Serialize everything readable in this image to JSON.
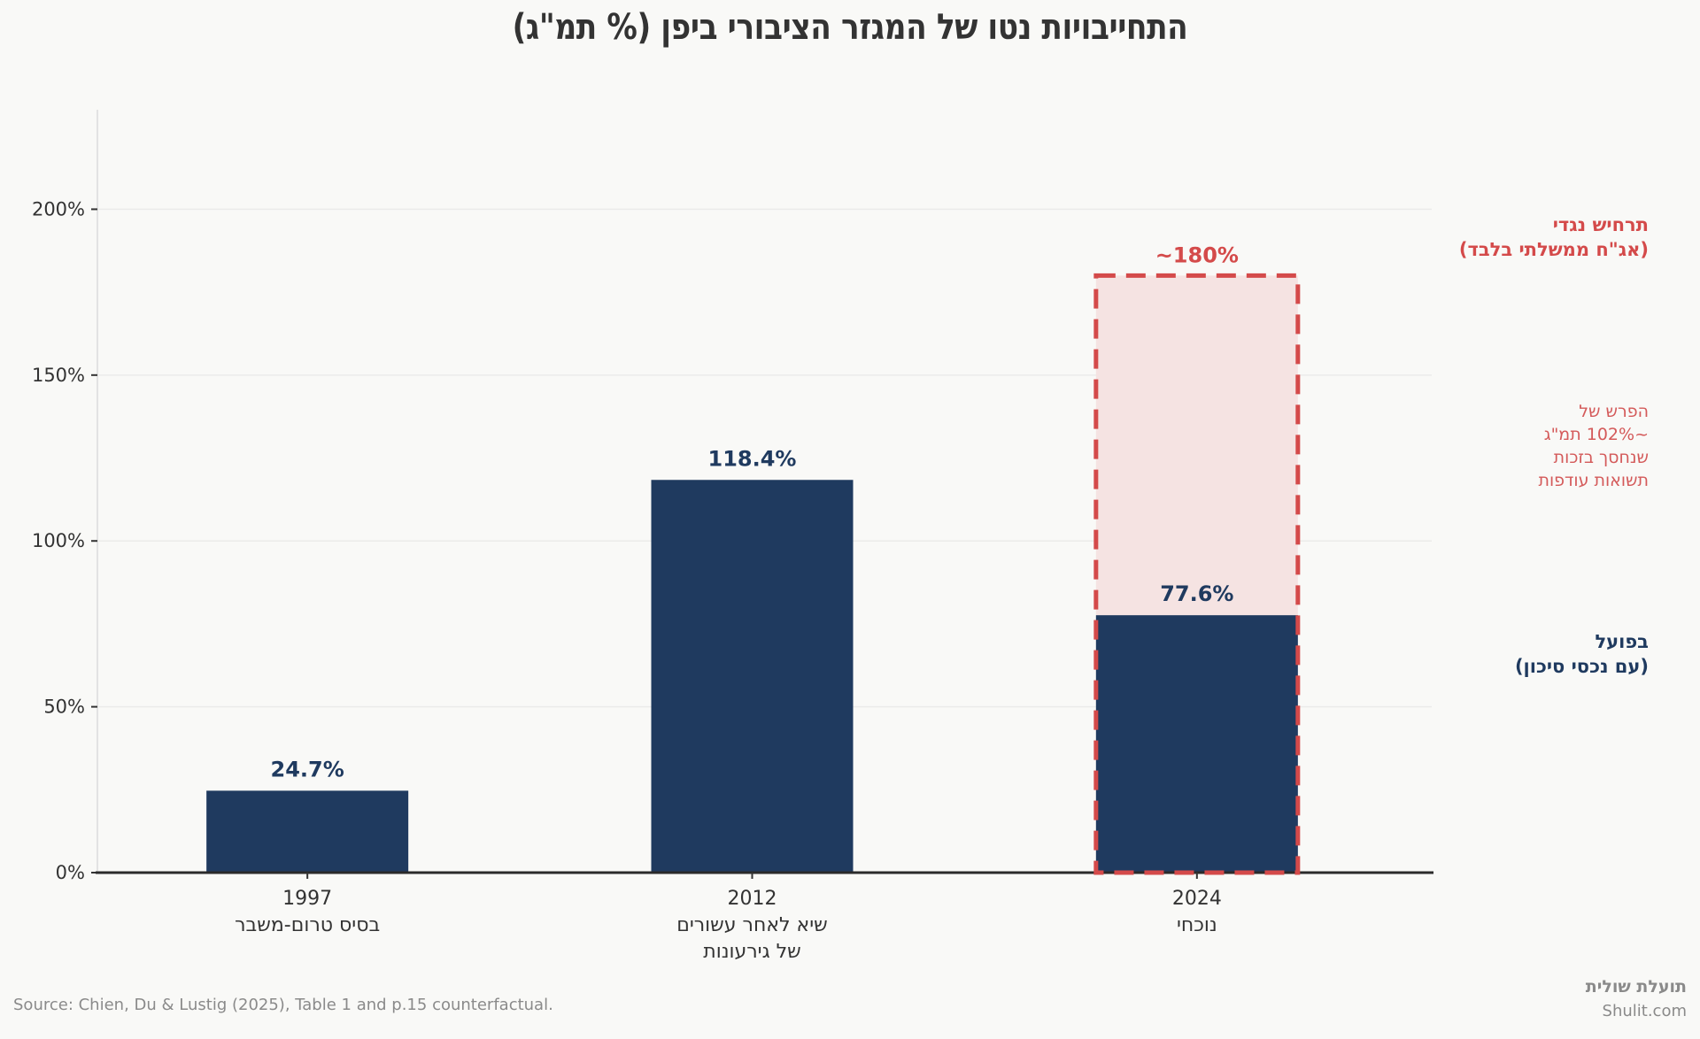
{
  "title": "התחייבויות נטו של המגזר הציבורי ביפן (% תמ\"ג)",
  "colors": {
    "actual_bar": "#1f3a5f",
    "counterfactual": "#d44a4a",
    "counterfactual_fill": "#f5e3e2",
    "background": "#f9f9f7"
  },
  "chart_data": {
    "type": "bar",
    "title": "התחייבויות נטו של המגזר הציבורי ביפן (% תמ\"ג)",
    "xlabel": "",
    "ylabel": "",
    "ylim": [
      0,
      230
    ],
    "yticks": [
      0,
      50,
      100,
      150,
      200
    ],
    "ytick_labels": [
      "0%",
      "50%",
      "100%",
      "150%",
      "200%"
    ],
    "grid": "horizontal",
    "categories": [
      {
        "year": "1997",
        "desc": [
          "בסיס טרום-משבר"
        ]
      },
      {
        "year": "2012",
        "desc": [
          "שיא לאחר עשורים",
          "של גירעונות"
        ]
      },
      {
        "year": "2024",
        "desc": [
          "נוכחי"
        ]
      }
    ],
    "series": [
      {
        "name": "בפועל (עם נכסי סיכון)",
        "values": [
          24.7,
          118.4,
          77.6
        ],
        "labels": [
          "24.7%",
          "118.4%",
          "77.6%"
        ]
      },
      {
        "name": "תרחיש נגדי (אג\"ח ממשלתי בלבד)",
        "category_index": 2,
        "value": 180,
        "label": "~180%",
        "style": "dashed-outline"
      }
    ],
    "annotations": {
      "counterfactual": [
        "תרחיש נגדי",
        "(אג\"ח ממשלתי בלבד)"
      ],
      "gap": [
        "הפרש של",
        "~102% תמ\"ג",
        "שנחסך בזכות",
        "תשואות עודפות"
      ],
      "actual": [
        "בפועל",
        "(עם נכסי סיכון)"
      ]
    }
  },
  "footer": {
    "source": "Source: Chien, Du & Lustig (2025), Table 1 and p.15 counterfactual.",
    "brand_he": "תועלת שולית",
    "brand_url": "Shulit.com"
  }
}
